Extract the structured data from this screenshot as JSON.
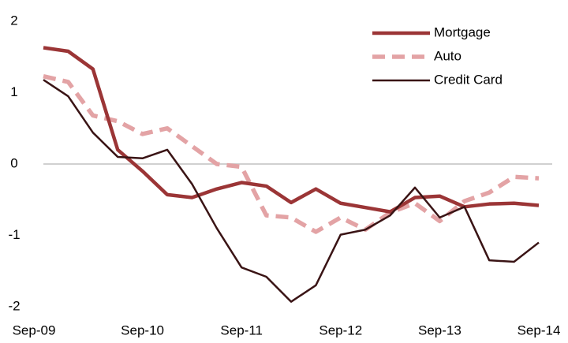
{
  "chart_data": {
    "type": "line",
    "categories": [
      "Sep-09",
      null,
      null,
      null,
      "Sep-10",
      null,
      null,
      null,
      "Sep-11",
      null,
      null,
      null,
      "Sep-12",
      null,
      null,
      null,
      "Sep-13",
      null,
      null,
      null,
      "Sep-14"
    ],
    "series": [
      {
        "name": "Mortgage",
        "color": "#9b3536",
        "style": "solid",
        "values": [
          1.63,
          1.58,
          1.33,
          0.2,
          -0.1,
          -0.43,
          -0.47,
          -0.35,
          -0.26,
          -0.31,
          -0.54,
          -0.35,
          -0.55,
          -0.61,
          -0.67,
          -0.47,
          -0.45,
          -0.6,
          -0.56,
          -0.55,
          -0.58
        ]
      },
      {
        "name": "Auto",
        "color": "#e3a3a5",
        "style": "dashed",
        "values": [
          1.23,
          1.15,
          0.68,
          0.6,
          0.42,
          0.5,
          0.25,
          0.0,
          -0.04,
          -0.72,
          -0.75,
          -0.95,
          -0.75,
          -0.92,
          -0.68,
          -0.55,
          -0.8,
          -0.52,
          -0.4,
          -0.18,
          -0.2
        ]
      },
      {
        "name": "Credit Card",
        "color": "#3a1415",
        "style": "solid",
        "values": [
          1.18,
          0.95,
          0.44,
          0.1,
          0.08,
          0.2,
          -0.28,
          -0.9,
          -1.45,
          -1.58,
          -1.93,
          -1.7,
          -0.99,
          -0.92,
          -0.72,
          -0.33,
          -0.75,
          -0.6,
          -1.35,
          -1.37,
          -1.1
        ]
      }
    ],
    "ylim": [
      -2,
      2
    ],
    "yticks": [
      -2,
      -1,
      0,
      1,
      2
    ],
    "grid": false,
    "legend": "upper right"
  }
}
